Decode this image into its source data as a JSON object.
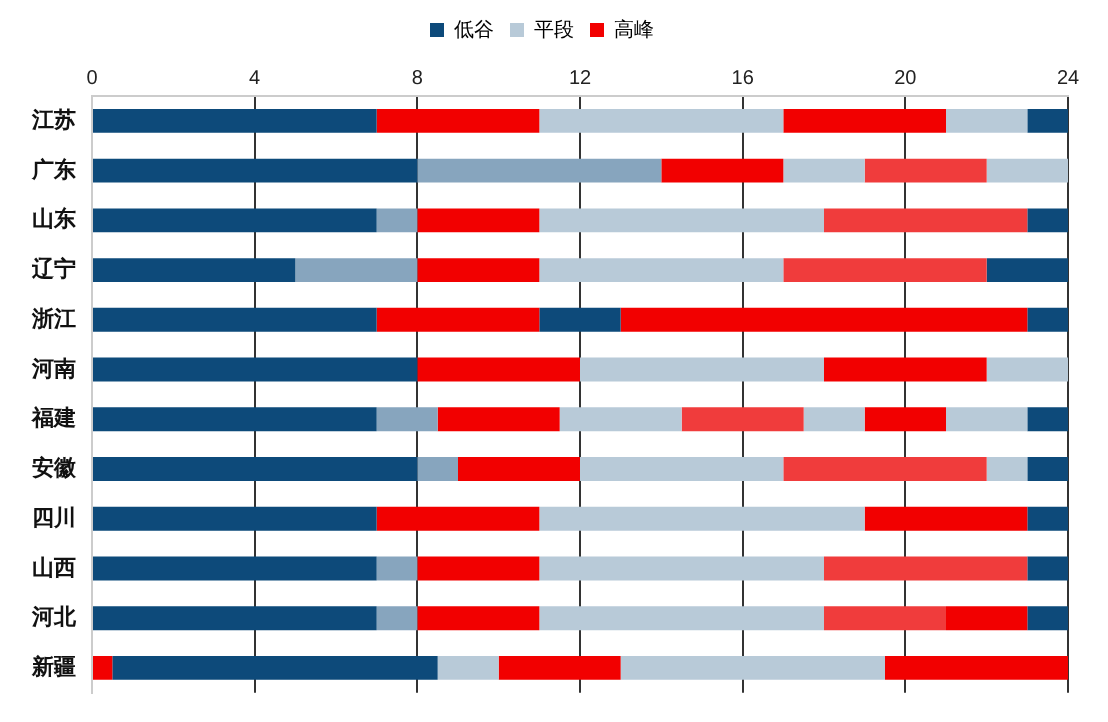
{
  "chart_data": {
    "type": "bar",
    "orientation": "horizontal",
    "stacked": true,
    "categories": [
      "江苏",
      "广东",
      "山东",
      "辽宁",
      "浙江",
      "河南",
      "福建",
      "安徽",
      "四川",
      "山西",
      "河北",
      "新疆"
    ],
    "series": [
      {
        "color": "#f20000",
        "values": [
          null,
          null,
          null,
          null,
          null,
          null,
          null,
          null,
          null,
          null,
          null,
          0.5
        ]
      },
      {
        "name": "低谷",
        "color": "#0d4a7a",
        "values": [
          7,
          8,
          7,
          5,
          7,
          8,
          7,
          8,
          7,
          7,
          7,
          8
        ]
      },
      {
        "name": "平段",
        "color": "#b8cad8",
        "colors": [
          "#b8cad8",
          "#87a5be",
          "#87a5be",
          "#87a5be",
          "#b8cad8",
          "#b8cad8",
          "#87a5be",
          "#87a5be",
          "#b8cad8",
          "#87a5be",
          "#87a5be",
          "#b8cad8"
        ],
        "values": [
          null,
          6,
          1,
          3,
          null,
          null,
          1.5,
          1,
          null,
          1,
          1,
          1.5
        ]
      },
      {
        "name": "高峰",
        "color": "#f20000",
        "values": [
          4,
          3,
          3,
          3,
          4,
          4,
          3,
          3,
          4,
          3,
          3,
          3
        ]
      },
      {
        "color": "#0d4a7a",
        "values": [
          null,
          null,
          null,
          null,
          2,
          null,
          null,
          null,
          null,
          null,
          null,
          null
        ]
      },
      {
        "color": "#b8cad8",
        "values": [
          6,
          2,
          7,
          6,
          null,
          6,
          3,
          5,
          8,
          7,
          7,
          6.5
        ]
      },
      {
        "colors": [
          "#f20000",
          "#f03c3c",
          "#f03c3c",
          "#f03c3c",
          "#f20000",
          "#f20000",
          "#f03c3c",
          "#f03c3c",
          "#f20000",
          "#f03c3c",
          "#f03c3c",
          "#f20000"
        ],
        "values": [
          4,
          3,
          5,
          5,
          10,
          4,
          3,
          5,
          4,
          5,
          3,
          4.5
        ]
      },
      {
        "color": "#b8cad8",
        "values": [
          2,
          2,
          null,
          null,
          null,
          2,
          1.5,
          1,
          null,
          null,
          null,
          null
        ]
      },
      {
        "color": "#f20000",
        "values": [
          null,
          null,
          null,
          null,
          null,
          null,
          2,
          null,
          null,
          null,
          2,
          null
        ]
      },
      {
        "color": "#b8cad8",
        "values": [
          null,
          null,
          null,
          null,
          null,
          null,
          2,
          null,
          null,
          null,
          null,
          null
        ]
      },
      {
        "color": "#0d4a7a",
        "values": [
          1,
          null,
          1,
          2,
          1,
          null,
          1,
          1,
          1,
          1,
          1,
          null
        ]
      }
    ],
    "xlim": [
      0,
      24
    ],
    "xticks": [
      0,
      4,
      8,
      12,
      16,
      20,
      24
    ],
    "grid": "x",
    "legend": "top"
  }
}
